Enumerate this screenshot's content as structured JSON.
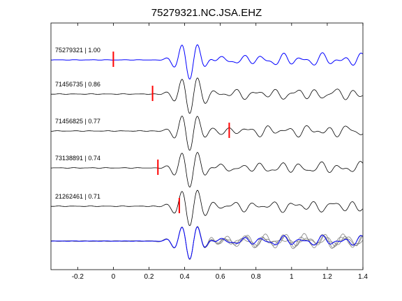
{
  "chart_data": {
    "type": "line",
    "title": "75279321.NC.JSA.EHZ",
    "xlabel": "",
    "ylabel": "",
    "xlim": [
      -0.35,
      1.4
    ],
    "xticks": [
      -0.2,
      0,
      0.2,
      0.4,
      0.6,
      0.8,
      1,
      1.2,
      1.4
    ],
    "xtick_labels": [
      "-0.2",
      "0",
      "0.2",
      "0.4",
      "0.6",
      "0.8",
      "1",
      "1.2",
      "1.4"
    ],
    "grid": false,
    "colors": {
      "reference": "#0000ff",
      "trace": "#000000",
      "stack": "#808080",
      "pick": "#ff0000"
    },
    "series": [
      {
        "name": "75279321 | 1.00",
        "pick": 0.0
      },
      {
        "name": "71456735 | 0.86",
        "pick": 0.22
      },
      {
        "name": "71456825 | 0.77",
        "pick": 0.65
      },
      {
        "name": "73138891 | 0.74",
        "pick": 0.25
      },
      {
        "name": "21262461 | 0.71",
        "pick": 0.37
      }
    ]
  }
}
